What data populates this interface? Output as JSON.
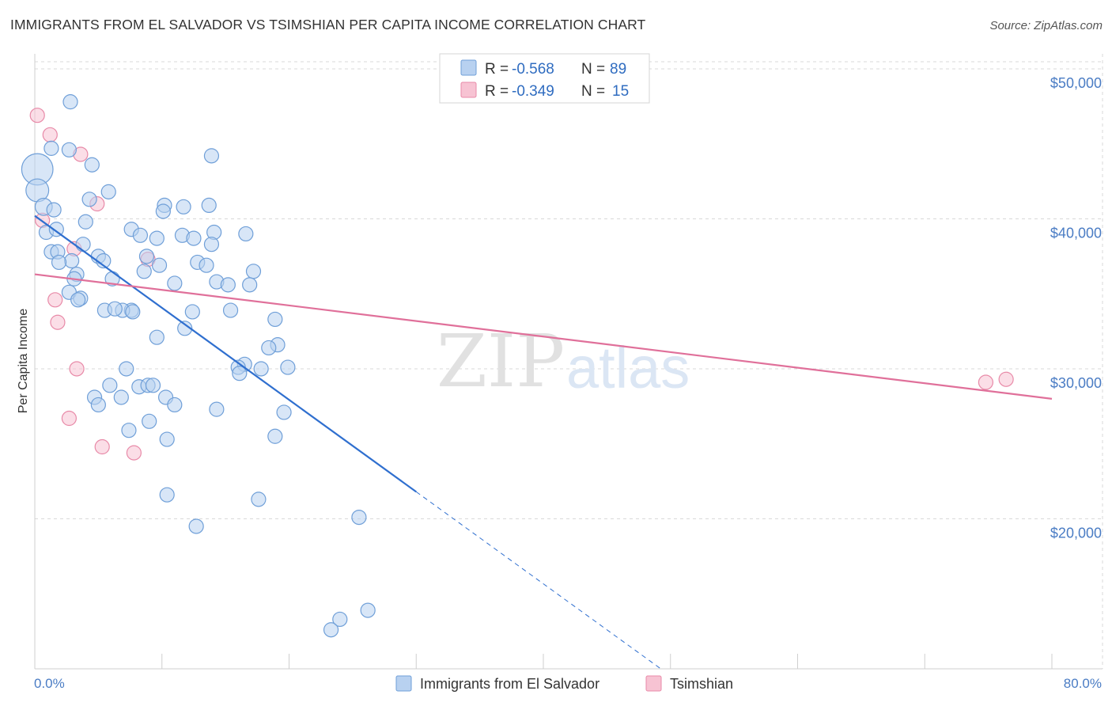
{
  "title": "IMMIGRANTS FROM EL SALVADOR VS TSIMSHIAN PER CAPITA INCOME CORRELATION CHART",
  "source": "Source: ZipAtlas.com",
  "watermark": {
    "zip": "ZIP",
    "atlas": "atlas"
  },
  "colors": {
    "blue_fill": "#b8d1f0",
    "blue_stroke": "#6f9fd8",
    "blue_line": "#2f6fcf",
    "pink_fill": "#f7c3d3",
    "pink_stroke": "#e88aa8",
    "pink_line": "#e0709a",
    "grid": "#d9d9d9",
    "axis_text": "#4a7cc4"
  },
  "chart_data": {
    "type": "scatter",
    "title": "IMMIGRANTS FROM EL SALVADOR VS TSIMSHIAN PER CAPITA INCOME CORRELATION CHART",
    "ylabel": "Per Capita Income",
    "xlim": [
      0,
      80
    ],
    "ylim": [
      10000,
      51000
    ],
    "x_tick_labels": [
      "0.0%",
      "80.0%"
    ],
    "y_ticks": [
      {
        "value": 20000,
        "label": "$20,000"
      },
      {
        "value": 30000,
        "label": "$30,000"
      },
      {
        "value": 40000,
        "label": "$40,000"
      },
      {
        "value": 50000,
        "label": "$50,000"
      }
    ],
    "legend": {
      "rows": [
        {
          "series": "Immigrants from El Salvador",
          "r_label": "R = ",
          "r_value": "-0.568",
          "n_label": "N = ",
          "n_value": "89"
        },
        {
          "series": "Tsimshian",
          "r_label": "R = ",
          "r_value": "-0.349",
          "n_label": "N = ",
          "n_value": "15"
        }
      ]
    },
    "series": [
      {
        "name": "Immigrants from El Salvador",
        "color": "blue",
        "trend": {
          "x0": 0,
          "y0": 40200,
          "x1": 30,
          "y1": 21800,
          "dash_to_x": 49.3
        },
        "points": [
          [
            0.2,
            43300,
            2.2
          ],
          [
            0.2,
            41900,
            1.6
          ],
          [
            0.7,
            40800,
            1.2
          ],
          [
            2.8,
            47800,
            1
          ],
          [
            1.3,
            44700,
            1
          ],
          [
            2.7,
            44600,
            1
          ],
          [
            4.5,
            43600,
            1
          ],
          [
            5.8,
            41800,
            1
          ],
          [
            4.3,
            41300,
            1
          ],
          [
            1.5,
            40600,
            1
          ],
          [
            10.2,
            40900,
            1
          ],
          [
            13.7,
            40900,
            1
          ],
          [
            11.7,
            40800,
            1
          ],
          [
            10.1,
            40500,
            1
          ],
          [
            0.9,
            39100,
            1
          ],
          [
            1.7,
            39300,
            1
          ],
          [
            7.6,
            39300,
            1
          ],
          [
            14.1,
            39100,
            1
          ],
          [
            16.6,
            39000,
            1
          ],
          [
            8.3,
            38900,
            1
          ],
          [
            9.6,
            38700,
            1
          ],
          [
            11.6,
            38900,
            1
          ],
          [
            3.8,
            38300,
            1
          ],
          [
            13.9,
            38300,
            1
          ],
          [
            1.3,
            37800,
            1
          ],
          [
            1.8,
            37800,
            1
          ],
          [
            5.0,
            37500,
            1
          ],
          [
            5.4,
            37200,
            1
          ],
          [
            2.9,
            37200,
            1
          ],
          [
            1.9,
            37100,
            1
          ],
          [
            8.8,
            37500,
            1
          ],
          [
            9.8,
            36900,
            1
          ],
          [
            12.8,
            37100,
            1
          ],
          [
            13.5,
            36900,
            1
          ],
          [
            17.2,
            36500,
            1
          ],
          [
            8.6,
            36500,
            1
          ],
          [
            6.1,
            36000,
            1
          ],
          [
            3.3,
            36300,
            1
          ],
          [
            3.1,
            36000,
            1
          ],
          [
            11.0,
            35700,
            1
          ],
          [
            14.3,
            35800,
            1
          ],
          [
            15.2,
            35600,
            1
          ],
          [
            16.9,
            35600,
            1
          ],
          [
            2.7,
            35100,
            1
          ],
          [
            3.6,
            34700,
            1
          ],
          [
            3.4,
            34600,
            1
          ],
          [
            5.5,
            33900,
            1
          ],
          [
            7.6,
            33900,
            1
          ],
          [
            6.9,
            33900,
            1
          ],
          [
            7.7,
            33800,
            1
          ],
          [
            12.4,
            33800,
            1
          ],
          [
            15.4,
            33900,
            1
          ],
          [
            18.9,
            33300,
            1
          ],
          [
            11.8,
            32700,
            1
          ],
          [
            9.6,
            32100,
            1
          ],
          [
            19.1,
            31600,
            1
          ],
          [
            18.4,
            31400,
            1
          ],
          [
            16.5,
            30300,
            1
          ],
          [
            16.0,
            30100,
            1
          ],
          [
            19.9,
            30100,
            1
          ],
          [
            17.8,
            30000,
            1
          ],
          [
            7.2,
            30000,
            1
          ],
          [
            16.1,
            29700,
            1
          ],
          [
            5.9,
            28900,
            1
          ],
          [
            8.2,
            28800,
            1
          ],
          [
            8.9,
            28900,
            1
          ],
          [
            10.3,
            28100,
            1
          ],
          [
            6.8,
            28100,
            1
          ],
          [
            4.7,
            28100,
            1
          ],
          [
            5.0,
            27600,
            1
          ],
          [
            11.0,
            27600,
            1
          ],
          [
            14.3,
            27300,
            1
          ],
          [
            19.6,
            27100,
            1
          ],
          [
            9.0,
            26500,
            1
          ],
          [
            7.4,
            25900,
            1
          ],
          [
            18.9,
            25500,
            1
          ],
          [
            10.4,
            25300,
            1
          ],
          [
            10.4,
            21600,
            1
          ],
          [
            17.6,
            21300,
            1
          ],
          [
            12.7,
            19500,
            1
          ],
          [
            25.5,
            20100,
            1
          ],
          [
            26.2,
            13900,
            1
          ],
          [
            24.0,
            13300,
            1
          ],
          [
            23.3,
            12600,
            1
          ],
          [
            13.9,
            44200,
            1
          ],
          [
            4.0,
            39800,
            1
          ],
          [
            6.3,
            34000,
            1
          ],
          [
            12.5,
            38700,
            1
          ],
          [
            9.3,
            28900,
            1
          ]
        ]
      },
      {
        "name": "Tsimshian",
        "color": "pink",
        "trend": {
          "x0": 0,
          "y0": 36300,
          "x1": 80,
          "y1": 28000
        },
        "points": [
          [
            0.2,
            46900,
            1
          ],
          [
            1.2,
            45600,
            1
          ],
          [
            3.6,
            44300,
            1
          ],
          [
            4.9,
            41000,
            1
          ],
          [
            0.6,
            39900,
            1
          ],
          [
            3.1,
            38000,
            1
          ],
          [
            8.9,
            37300,
            1
          ],
          [
            1.6,
            34600,
            1
          ],
          [
            1.8,
            33100,
            1
          ],
          [
            3.3,
            30000,
            1
          ],
          [
            2.7,
            26700,
            1
          ],
          [
            5.3,
            24800,
            1
          ],
          [
            7.8,
            24400,
            1
          ],
          [
            76.4,
            29300,
            1
          ],
          [
            74.8,
            29100,
            1
          ]
        ]
      }
    ]
  }
}
